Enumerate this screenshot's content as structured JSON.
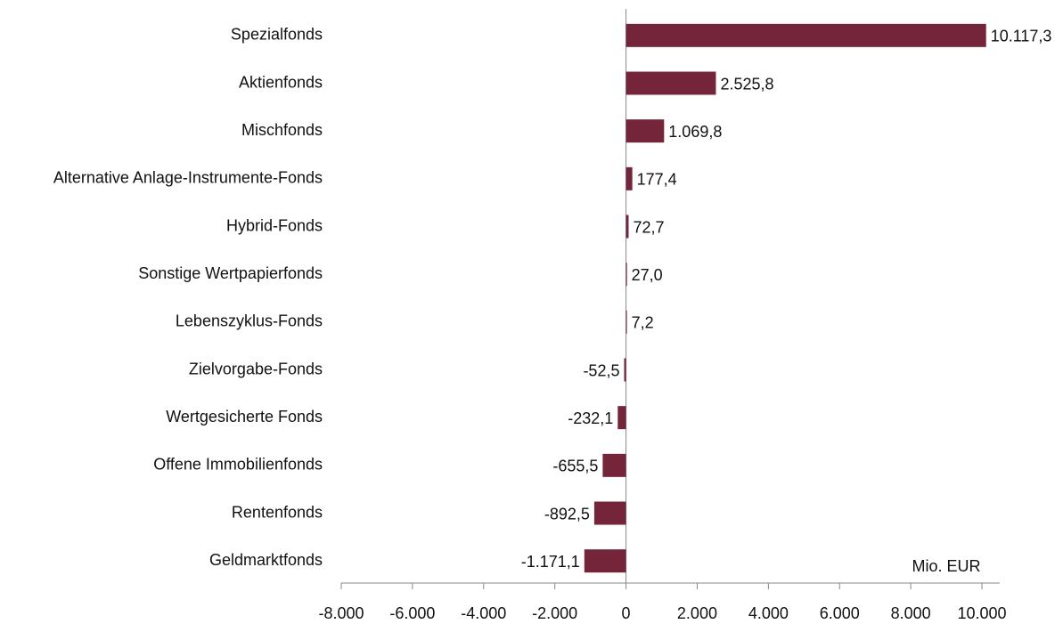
{
  "chart_data": {
    "type": "bar",
    "orientation": "horizontal",
    "categories": [
      "Spezialfonds",
      "Aktienfonds",
      "Mischfonds",
      "Alternative Anlage-Instrumente-Fonds",
      "Hybrid-Fonds",
      "Sonstige Wertpapierfonds",
      "Lebenszyklus-Fonds",
      "Zielvorgabe-Fonds",
      "Wertgesicherte Fonds",
      "Offene Immobilienfonds",
      "Rentenfonds",
      "Geldmarktfonds"
    ],
    "values": [
      10117.3,
      2525.8,
      1069.8,
      177.4,
      72.7,
      27.0,
      7.2,
      -52.5,
      -232.1,
      -655.5,
      -892.5,
      -1171.1
    ],
    "value_labels": [
      "10.117,3",
      "2.525,8",
      "1.069,8",
      "177,4",
      "72,7",
      "27,0",
      "7,2",
      "-52,5",
      "-232,1",
      "-655,5",
      "-892,5",
      "-1.171,1"
    ],
    "color": "#74253a",
    "xlim": [
      -8000,
      10500
    ],
    "xticks": [
      {
        "value": -8000,
        "label": "-8.000"
      },
      {
        "value": -6000,
        "label": "-6.000"
      },
      {
        "value": -4000,
        "label": "-4.000"
      },
      {
        "value": -2000,
        "label": "-2.000"
      },
      0,
      {
        "value": 2000,
        "label": "2.000"
      },
      {
        "value": 4000,
        "label": "4.000"
      },
      {
        "value": 6000,
        "label": "6.000"
      },
      {
        "value": 8000,
        "label": "8.000"
      },
      {
        "value": 10000,
        "label": "10.000"
      }
    ],
    "unit_label": "Mio. EUR"
  }
}
